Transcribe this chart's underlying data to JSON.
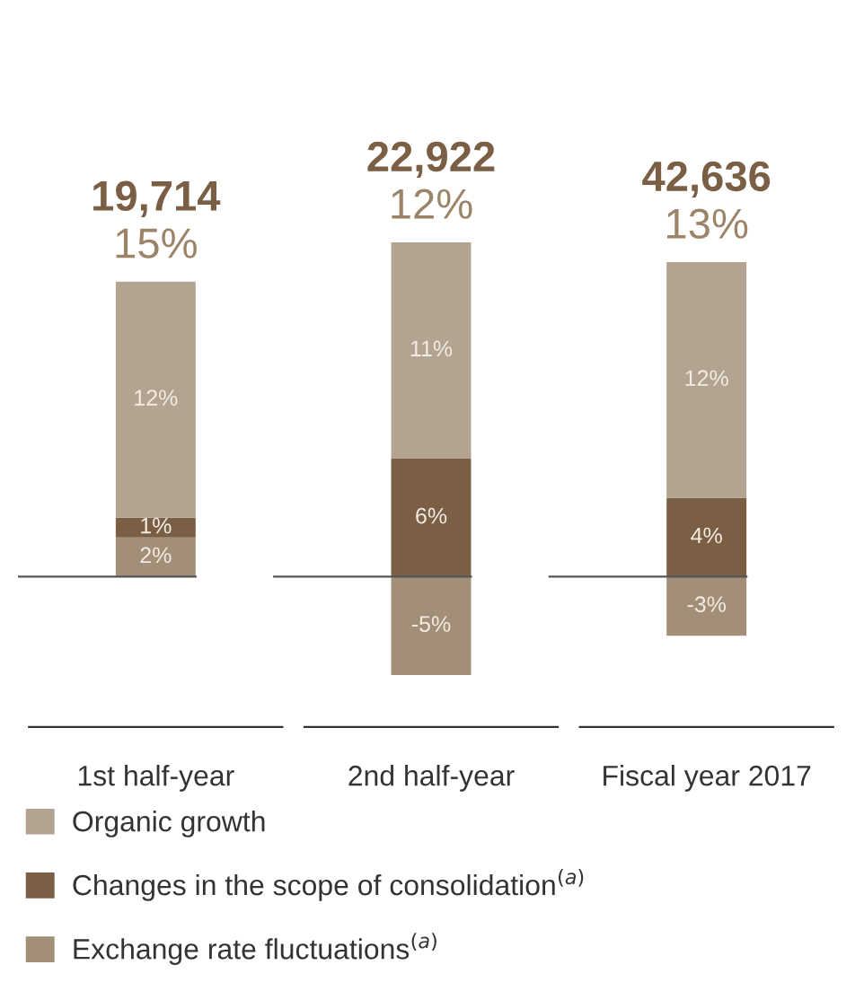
{
  "chart_data": {
    "type": "bar",
    "stacked": true,
    "categories": [
      "1st half-year",
      "2nd half-year",
      "Fiscal year 2017"
    ],
    "series": [
      {
        "name": "Exchange rate fluctuations$^{(a)}$",
        "color": "#a38f78",
        "values": [
          2,
          -5,
          -3
        ],
        "value_labels": [
          "2%",
          "-5%",
          "-3%"
        ]
      },
      {
        "name": "Changes in the scope of consolidation$^{(a)}$",
        "color": "#7a5f45",
        "values": [
          1,
          6,
          4
        ],
        "value_labels": [
          "1%",
          "6%",
          "4%"
        ]
      },
      {
        "name": "Organic growth",
        "color": "#b3a391",
        "values": [
          12,
          11,
          12
        ],
        "value_labels": [
          "12%",
          "11%",
          "12%"
        ]
      }
    ],
    "totals": [
      "15%",
      "12%",
      "13%"
    ],
    "annotations": [
      "19,714",
      "22,922",
      "42,636"
    ],
    "ref_lines": [
      {
        "axis": "y",
        "value": 0,
        "color": "#555555"
      }
    ],
    "tick_labels": "x",
    "grid": false,
    "legend": "bottom left"
  }
}
